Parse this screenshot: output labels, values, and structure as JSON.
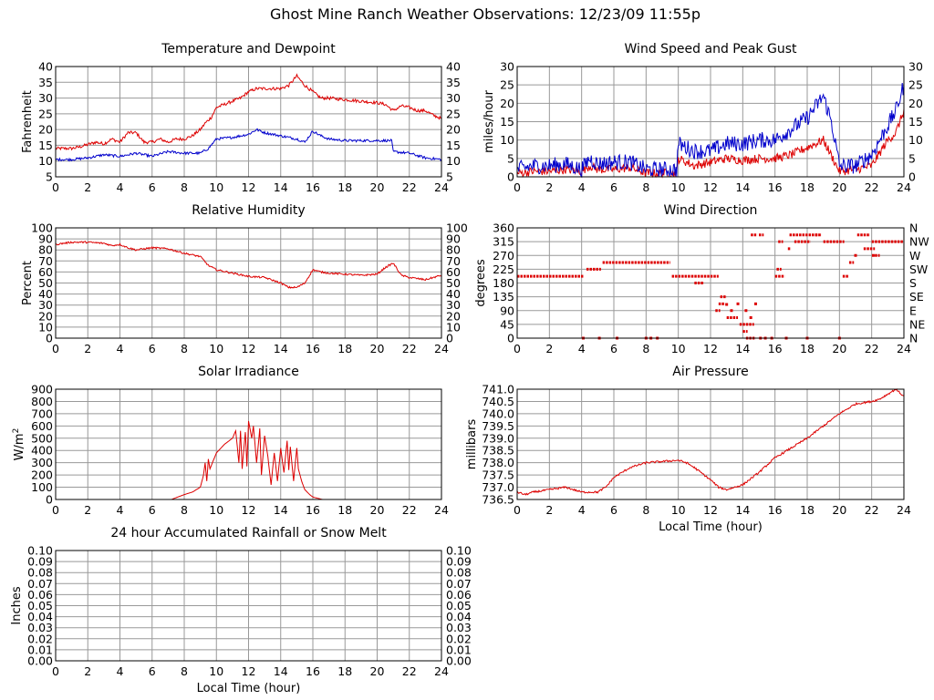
{
  "title": "Ghost Mine Ranch Weather Observations: 12/23/09 11:55p",
  "colors": {
    "red": "#dd0000",
    "blue": "#0000cc",
    "grid": "#999999",
    "axis": "#000000"
  },
  "chart_data": [
    {
      "id": "temperature",
      "type": "line",
      "title": "Temperature and Dewpoint",
      "xlabel": "",
      "ylabel": "Fahrenheit",
      "xlim": [
        0,
        24
      ],
      "ylim": [
        5,
        40
      ],
      "xticks": [
        0,
        2,
        4,
        6,
        8,
        10,
        12,
        14,
        16,
        18,
        20,
        22,
        24
      ],
      "yticks": [
        5,
        10,
        15,
        20,
        25,
        30,
        35,
        40
      ],
      "y_decimals": 0,
      "right_ticks": true,
      "grid": true,
      "series": [
        {
          "color": "#dd0000",
          "noise": 0.5,
          "x": [
            0,
            1,
            1.5,
            2.5,
            3,
            3.5,
            4,
            4.5,
            5,
            5.5,
            6,
            6.5,
            7,
            7.5,
            8,
            8.5,
            9,
            9.3,
            9.7,
            10,
            10.5,
            11,
            11.5,
            12,
            12.5,
            13,
            13.5,
            14,
            14.5,
            15,
            15.5,
            16,
            16.5,
            17,
            18,
            19,
            20,
            20.5,
            21,
            21.5,
            22,
            22.5,
            23,
            23.5,
            24
          ],
          "y": [
            14,
            14,
            14.5,
            16,
            15.5,
            17,
            16,
            19,
            19,
            16,
            16,
            17,
            16,
            17,
            17,
            18,
            20,
            22,
            24,
            27,
            28,
            29,
            30,
            32,
            33,
            33,
            33,
            33,
            34,
            37,
            34,
            32,
            30,
            30,
            29.5,
            29,
            28.5,
            28,
            26,
            27.5,
            27,
            26,
            26,
            24.5,
            23.5
          ]
        },
        {
          "color": "#0000cc",
          "noise": 0.4,
          "x": [
            0,
            1,
            2,
            3,
            4,
            5,
            6,
            7,
            8,
            9,
            9.5,
            10,
            11,
            12,
            12.5,
            13,
            14,
            15,
            15.5,
            16,
            16.5,
            17,
            18,
            19,
            20,
            20.9,
            21,
            22,
            23,
            24
          ],
          "y": [
            10.5,
            10.5,
            11,
            12,
            11.5,
            12.5,
            11.5,
            13,
            12.5,
            12.5,
            14,
            17,
            17.5,
            18.5,
            20,
            19,
            18,
            17,
            16,
            19.5,
            18,
            17,
            16.5,
            16.5,
            16.5,
            16.5,
            13,
            12.5,
            11,
            10.5
          ]
        }
      ]
    },
    {
      "id": "wind-speed",
      "type": "line",
      "title": "Wind Speed and Peak Gust",
      "xlabel": "",
      "ylabel": "miles/hour",
      "xlim": [
        0,
        24
      ],
      "ylim": [
        0,
        30
      ],
      "xticks": [
        0,
        2,
        4,
        6,
        8,
        10,
        12,
        14,
        16,
        18,
        20,
        22,
        24
      ],
      "yticks": [
        0,
        5,
        10,
        15,
        20,
        25,
        30
      ],
      "y_decimals": 0,
      "right_ticks": true,
      "grid": true,
      "series": [
        {
          "color": "#dd0000",
          "noise": 1.2,
          "x": [
            0,
            1,
            2,
            3,
            4,
            4.5,
            5,
            6,
            7,
            8,
            9,
            9.9,
            10,
            11,
            12,
            13,
            14,
            15,
            16,
            17,
            18,
            19,
            20,
            21,
            22,
            23,
            23.5,
            24
          ],
          "y": [
            1,
            1.5,
            1.5,
            2,
            1.5,
            3,
            2,
            2,
            2.5,
            1,
            1,
            1,
            5,
            3,
            4,
            5,
            4.5,
            5,
            5,
            6,
            8,
            10,
            1.5,
            2,
            3,
            10,
            12,
            18
          ]
        },
        {
          "color": "#0000cc",
          "noise": 2.2,
          "x": [
            0,
            1,
            2,
            3,
            4,
            4.5,
            5,
            6,
            7,
            8,
            9,
            9.9,
            10,
            11,
            12,
            13,
            14,
            15,
            16,
            17,
            18,
            19,
            19.5,
            20,
            21,
            22,
            23,
            23.5,
            24
          ],
          "y": [
            2,
            3,
            3,
            3.5,
            2,
            5,
            3.5,
            4,
            4,
            2,
            2,
            2,
            9,
            7,
            7,
            9,
            9,
            10,
            10,
            13,
            16,
            22,
            15,
            3,
            3,
            6,
            14,
            18,
            25
          ]
        }
      ]
    },
    {
      "id": "humidity",
      "type": "line",
      "title": "Relative Humidity",
      "xlabel": "",
      "ylabel": "Percent",
      "xlim": [
        0,
        24
      ],
      "ylim": [
        0,
        100
      ],
      "xticks": [
        0,
        2,
        4,
        6,
        8,
        10,
        12,
        14,
        16,
        18,
        20,
        22,
        24
      ],
      "yticks": [
        0,
        10,
        20,
        30,
        40,
        50,
        60,
        70,
        80,
        90,
        100
      ],
      "y_decimals": 0,
      "right_ticks": true,
      "grid": true,
      "series": [
        {
          "color": "#dd0000",
          "noise": 0.8,
          "x": [
            0,
            1,
            2,
            3,
            3.5,
            4,
            4.5,
            5,
            6,
            7,
            8,
            9,
            9.5,
            10,
            11,
            12,
            13,
            14,
            14.5,
            15,
            15.5,
            16,
            16.5,
            17,
            18,
            19,
            20,
            20.5,
            21,
            21.5,
            22,
            23,
            24
          ],
          "y": [
            85,
            87,
            87,
            86,
            84,
            85,
            82,
            80,
            82,
            81,
            77,
            74,
            66,
            62,
            59,
            56,
            55,
            50,
            46,
            46,
            50,
            62,
            60,
            59,
            58,
            57,
            58,
            64,
            68,
            57,
            55,
            53,
            57
          ]
        }
      ]
    },
    {
      "id": "wind-direction",
      "type": "scatter",
      "title": "Wind Direction",
      "xlabel": "",
      "ylabel": "degrees",
      "xlim": [
        0,
        24
      ],
      "ylim": [
        0,
        360
      ],
      "xticks": [
        0,
        2,
        4,
        6,
        8,
        10,
        12,
        14,
        16,
        18,
        20,
        22,
        24
      ],
      "yticks": [
        0,
        45,
        90,
        135,
        180,
        225,
        270,
        315,
        360
      ],
      "y_decimals": 0,
      "right_labels": [
        "N",
        "NE",
        "E",
        "SE",
        "S",
        "SW",
        "W",
        "NW",
        "N"
      ],
      "grid": true,
      "series": [
        {
          "color": "#dd0000",
          "segments": [
            [
              0,
              4.1,
              202
            ],
            [
              4.3,
              5.2,
              225
            ],
            [
              5.3,
              9.5,
              247
            ],
            [
              9.6,
              10.8,
              202
            ],
            [
              10.8,
              12.5,
              202
            ],
            [
              11.0,
              11.6,
              180
            ],
            [
              12.3,
              12.6,
              90
            ],
            [
              12.5,
              12.9,
              112
            ],
            [
              12.6,
              13.0,
              135
            ],
            [
              13.0,
              13.7,
              67
            ],
            [
              13.8,
              14.7,
              45
            ],
            [
              14.0,
              14.3,
              22
            ],
            [
              14.2,
              14.8,
              0
            ],
            [
              16.0,
              16.6,
              202
            ],
            [
              16.1,
              16.4,
              225
            ],
            [
              16.8,
              17.0,
              292
            ],
            [
              16.9,
              18.7,
              337
            ],
            [
              17.2,
              18.2,
              315
            ],
            [
              18.5,
              18.9,
              337
            ],
            [
              19.0,
              20.3,
              315
            ],
            [
              20.2,
              20.6,
              202
            ],
            [
              20.6,
              20.9,
              247
            ],
            [
              21.1,
              21.9,
              337
            ],
            [
              21.5,
              22.2,
              292
            ],
            [
              22.0,
              23.2,
              315
            ],
            [
              23.2,
              24,
              315
            ],
            [
              22.2,
              22.5,
              270
            ],
            [
              14.5,
              14.9,
              337
            ],
            [
              15.0,
              15.3,
              337
            ],
            [
              16.2,
              16.5,
              315
            ]
          ],
          "points": [
            [
              4.1,
              0
            ],
            [
              5.1,
              0
            ],
            [
              6.2,
              0
            ],
            [
              8.0,
              0
            ],
            [
              8.3,
              0
            ],
            [
              8.7,
              0
            ],
            [
              13.0,
              110
            ],
            [
              13.3,
              90
            ],
            [
              13.7,
              112
            ],
            [
              14.2,
              90
            ],
            [
              14.5,
              67
            ],
            [
              14.8,
              112
            ],
            [
              15.1,
              0
            ],
            [
              15.4,
              0
            ],
            [
              15.8,
              0
            ],
            [
              16.7,
              0
            ],
            [
              18.0,
              0
            ],
            [
              20.0,
              0
            ],
            [
              21.0,
              270
            ],
            [
              22.1,
              270
            ]
          ]
        }
      ]
    },
    {
      "id": "solar",
      "type": "line",
      "title": "Solar Irradiance",
      "xlabel": "",
      "ylabel": "W/m2",
      "xlim": [
        0,
        24
      ],
      "ylim": [
        0,
        900
      ],
      "xticks": [
        0,
        2,
        4,
        6,
        8,
        10,
        12,
        14,
        16,
        18,
        20,
        22,
        24
      ],
      "yticks": [
        0,
        100,
        200,
        300,
        400,
        500,
        600,
        700,
        800,
        900
      ],
      "y_decimals": 0,
      "right_ticks": false,
      "grid": true,
      "series": [
        {
          "color": "#dd0000",
          "noise": 0,
          "x": [
            0,
            7.2,
            7.6,
            8.0,
            8.5,
            9.0,
            9.2,
            9.3,
            9.4,
            9.5,
            9.6,
            10.0,
            10.5,
            11.0,
            11.2,
            11.4,
            11.5,
            11.6,
            11.8,
            11.9,
            12.0,
            12.2,
            12.3,
            12.5,
            12.7,
            12.8,
            13.0,
            13.2,
            13.4,
            13.6,
            13.8,
            14.0,
            14.2,
            14.4,
            14.5,
            14.6,
            14.8,
            15.0,
            15.1,
            15.3,
            15.5,
            15.8,
            16.0,
            16.3,
            16.6,
            17.0,
            24
          ],
          "y": [
            0,
            0,
            20,
            40,
            60,
            100,
            200,
            300,
            150,
            330,
            250,
            380,
            450,
            500,
            560,
            300,
            560,
            250,
            550,
            270,
            640,
            500,
            600,
            300,
            580,
            200,
            520,
            350,
            120,
            380,
            150,
            420,
            220,
            480,
            240,
            430,
            150,
            420,
            250,
            150,
            80,
            40,
            20,
            10,
            0,
            0,
            0
          ]
        }
      ]
    },
    {
      "id": "pressure",
      "type": "line",
      "title": "Air Pressure",
      "xlabel": "Local Time (hour)",
      "ylabel": "millibars",
      "xlim": [
        0,
        24
      ],
      "ylim": [
        736.5,
        741.0
      ],
      "xticks": [
        0,
        2,
        4,
        6,
        8,
        10,
        12,
        14,
        16,
        18,
        20,
        22,
        24
      ],
      "yticks": [
        736.5,
        737.0,
        737.5,
        738.0,
        738.5,
        739.0,
        739.5,
        740.0,
        740.5,
        741.0
      ],
      "y_decimals": 1,
      "right_ticks": false,
      "grid": true,
      "series": [
        {
          "color": "#dd0000",
          "noise": 0.04,
          "x": [
            0,
            0.5,
            1,
            2,
            3,
            3.5,
            4,
            5,
            5.5,
            6,
            7,
            8,
            9,
            10,
            10.5,
            11,
            12,
            12.5,
            13,
            14,
            15,
            16,
            17,
            18,
            19,
            20,
            21,
            22,
            22.5,
            23,
            23.5,
            24
          ],
          "y": [
            736.8,
            736.7,
            736.8,
            736.9,
            737.0,
            736.9,
            736.8,
            736.8,
            737.0,
            737.4,
            737.8,
            738.0,
            738.05,
            738.1,
            738.0,
            737.8,
            737.3,
            737.0,
            736.9,
            737.1,
            737.6,
            738.2,
            738.6,
            739.0,
            739.5,
            740.0,
            740.4,
            740.5,
            740.6,
            740.8,
            741.0,
            740.7
          ]
        }
      ]
    },
    {
      "id": "rainfall",
      "type": "line",
      "title": "24 hour Accumulated Rainfall or Snow Melt",
      "xlabel": "Local Time (hour)",
      "ylabel": "Inches",
      "xlim": [
        0,
        24
      ],
      "ylim": [
        0,
        0.1
      ],
      "xticks": [
        0,
        2,
        4,
        6,
        8,
        10,
        12,
        14,
        16,
        18,
        20,
        22,
        24
      ],
      "yticks": [
        0.0,
        0.01,
        0.02,
        0.03,
        0.04,
        0.05,
        0.06,
        0.07,
        0.08,
        0.09,
        0.1
      ],
      "y_decimals": 2,
      "right_ticks": true,
      "grid": true,
      "series": [
        {
          "color": "#dd0000",
          "noise": 0,
          "x": [
            0,
            24
          ],
          "y": [
            0,
            0
          ]
        }
      ]
    }
  ]
}
